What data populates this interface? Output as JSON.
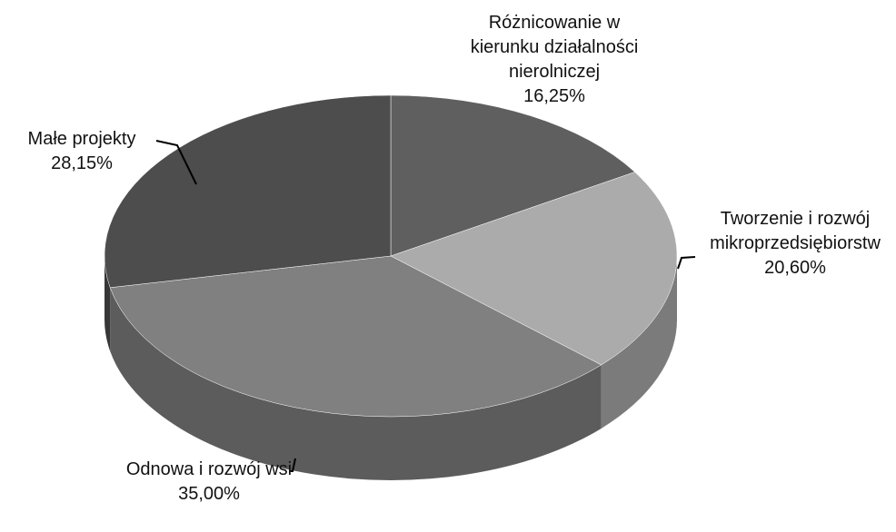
{
  "chart_data": {
    "type": "pie",
    "categories": [
      "Różnicowanie w kierunku działalności nierolniczej",
      "Tworzenie i rozwój mikroprzedsiębiorstw",
      "Odnowa i rozwój wsi",
      "Małe projekty"
    ],
    "values": [
      16.25,
      20.6,
      35,
      28.15
    ],
    "value_labels": [
      "16,25%",
      "20,60%",
      "35,00%",
      "28,15%"
    ],
    "colors": [
      "#5f5f5f",
      "#ababab",
      "#808080",
      "#4d4d4d"
    ]
  }
}
